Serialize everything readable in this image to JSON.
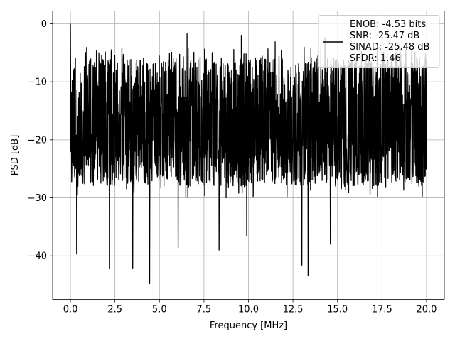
{
  "chart_data": {
    "type": "line",
    "title": "",
    "xlabel": "Frequency [MHz]",
    "ylabel": "PSD [dB]",
    "xlim": [
      -1.0,
      21.0
    ],
    "ylim": [
      -47.5,
      2.2
    ],
    "x_ticks": [
      0.0,
      2.5,
      5.0,
      7.5,
      10.0,
      12.5,
      15.0,
      17.5,
      20.0
    ],
    "x_tick_labels": [
      "0.0",
      "2.5",
      "5.0",
      "7.5",
      "10.0",
      "12.5",
      "15.0",
      "17.5",
      "20.0"
    ],
    "y_ticks": [
      0,
      -10,
      -20,
      -30,
      -40
    ],
    "y_tick_labels": [
      "0",
      "−10",
      "−20",
      "−30",
      "−40"
    ],
    "grid": true,
    "legend_position": "top-right",
    "line_color": "#000000",
    "series": [
      {
        "name": "ENOB: -4.53 bits\nSNR: -25.47 dB\nSINAD: -25.48 dB\nSFDR: 1.46",
        "x_range": [
          0.0,
          20.0
        ],
        "peak": {
          "x": 0.0,
          "y": 0.0
        },
        "typical_band": [
          -25,
          -8
        ],
        "notable_dips": [
          {
            "x": 0.35,
            "y": -39.7
          },
          {
            "x": 2.2,
            "y": -42.2
          },
          {
            "x": 3.5,
            "y": -42.1
          },
          {
            "x": 4.45,
            "y": -44.8
          },
          {
            "x": 6.05,
            "y": -38.6
          },
          {
            "x": 8.35,
            "y": -39.0
          },
          {
            "x": 13.0,
            "y": -41.6
          },
          {
            "x": 13.35,
            "y": -43.4
          },
          {
            "x": 14.6,
            "y": -38.0
          },
          {
            "x": 9.9,
            "y": -36.5
          }
        ],
        "notable_peaks": [
          {
            "x": 6.55,
            "y": -1.7
          },
          {
            "x": 9.6,
            "y": -2.0
          },
          {
            "x": 14.3,
            "y": -2.4
          },
          {
            "x": 1.6,
            "y": -5.0
          },
          {
            "x": 11.5,
            "y": -3.1
          },
          {
            "x": 18.5,
            "y": -3.8
          }
        ]
      }
    ]
  }
}
